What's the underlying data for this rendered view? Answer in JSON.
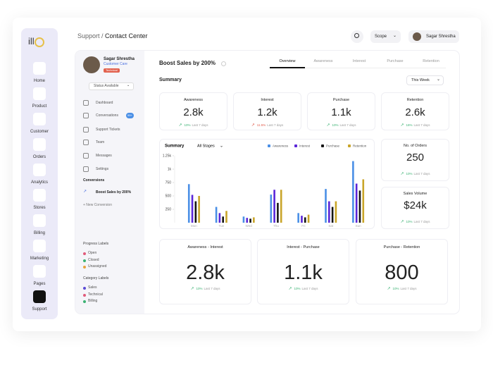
{
  "nav": [
    "Home",
    "Product",
    "Customer",
    "Orders",
    "Analytics",
    "Stores",
    "Billing",
    "Marketing",
    "Pages",
    "Support"
  ],
  "header": {
    "breadcrumb": "Support /",
    "page": "Contact Center",
    "scope": "Scope",
    "user": "Sagar Shrestha"
  },
  "profile": {
    "name": "Sagar Shrestha",
    "role": "Customer Care",
    "tag": "Technical",
    "status": "Status Available"
  },
  "menu": {
    "items": [
      "Dashboard",
      "Conversations",
      "Support Tickets",
      "Team",
      "Messages",
      "Settings"
    ],
    "badge": "99+"
  },
  "conversions": {
    "title": "Conversions",
    "active": "Boost Sales by 200%",
    "new": "+ New Conversion"
  },
  "progress_labels": {
    "title": "Progress Labels",
    "items": [
      {
        "label": "Open",
        "color": "#e05a7a"
      },
      {
        "label": "Closed",
        "color": "#3bb273"
      },
      {
        "label": "Unassigned",
        "color": "#e7a33e"
      }
    ]
  },
  "category_labels": {
    "title": "Category Labels",
    "items": [
      {
        "label": "Sales",
        "color": "#5b4bd6"
      },
      {
        "label": "Technical",
        "color": "#e05a7a"
      },
      {
        "label": "Billing",
        "color": "#3bb273"
      }
    ]
  },
  "main": {
    "title": "Boost Sales by 200%",
    "tabs": [
      "Overview",
      "Awareness",
      "Interest",
      "Purchase",
      "Retention"
    ],
    "section": "Summary",
    "period": "This Week"
  },
  "stats": [
    {
      "label": "Awareness",
      "value": "2.8k",
      "change": "10%",
      "period": "Last 7 days",
      "color": "#3bb273"
    },
    {
      "label": "Interest",
      "value": "1.2k",
      "change": "11.5%",
      "period": "Last 7 days",
      "color": "#e05a4a"
    },
    {
      "label": "Purchase",
      "value": "1.1k",
      "change": "10%",
      "period": "Last 7 days",
      "color": "#3bb273"
    },
    {
      "label": "Retention",
      "value": "2.6k",
      "change": "16%",
      "period": "Last 7 days",
      "color": "#3bb273"
    }
  ],
  "side_stats": [
    {
      "label": "No. of Orders",
      "value": "250",
      "change": "10%",
      "period": "Last 7 days",
      "color": "#3bb273"
    },
    {
      "label": "Sales Volume",
      "value": "$24k",
      "change": "10%",
      "period": "Last 7 days",
      "color": "#3bb273"
    }
  ],
  "funnel": [
    {
      "label": "Awareness - Interest",
      "value": "2.8k",
      "change": "10%",
      "period": "Last 7 days",
      "color": "#3bb273"
    },
    {
      "label": "Interest - Purchase",
      "value": "1.1k",
      "change": "10%",
      "period": "Last 7 days",
      "color": "#3bb273"
    },
    {
      "label": "Purchase - Retention",
      "value": "800",
      "change": "10%",
      "period": "Last 7 days",
      "color": "#3bb273"
    }
  ],
  "chart_data": {
    "type": "bar",
    "title": "Summary",
    "filter": "All Stages",
    "categories": [
      "Mon",
      "Tue",
      "Wed",
      "Thu",
      "Fri",
      "Sat",
      "Sun"
    ],
    "series": [
      {
        "name": "Awareness",
        "color": "#4a8fe6",
        "values": [
          720,
          295,
          115,
          525,
          180,
          630,
          1150
        ]
      },
      {
        "name": "Interest",
        "color": "#5a26d8",
        "values": [
          520,
          180,
          90,
          615,
          130,
          400,
          730
        ]
      },
      {
        "name": "Purchase",
        "color": "#151515",
        "values": [
          400,
          115,
          75,
          370,
          100,
          295,
          600
        ]
      },
      {
        "name": "Retention",
        "color": "#c9a52a",
        "values": [
          500,
          220,
          100,
          615,
          150,
          400,
          810
        ]
      }
    ],
    "ylim": [
      0,
      1250
    ],
    "yticks": [
      {
        "value": 1250,
        "label": "1.25k"
      },
      {
        "value": 1000,
        "label": "1k"
      },
      750,
      500,
      250
    ]
  }
}
